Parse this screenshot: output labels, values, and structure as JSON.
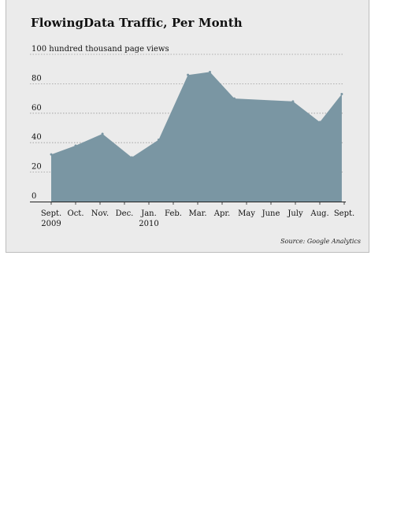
{
  "chart_data": {
    "type": "area",
    "title": "FlowingData Traffic, Per Month",
    "ylabel": "100 hundred thousand page views",
    "source": "Source: Google Analytics",
    "ylim": [
      0,
      100
    ],
    "yticks": [
      "0",
      "20",
      "40",
      "60",
      "80",
      "100"
    ],
    "grid": true,
    "x_labels": [
      {
        "month": "Sept.",
        "year": "2009"
      },
      {
        "month": "Oct.",
        "year": ""
      },
      {
        "month": "Nov.",
        "year": ""
      },
      {
        "month": "Dec.",
        "year": ""
      },
      {
        "month": "Jan.",
        "year": "2010"
      },
      {
        "month": "Feb.",
        "year": ""
      },
      {
        "month": "Mar.",
        "year": ""
      },
      {
        "month": "Apr.",
        "year": ""
      },
      {
        "month": "May",
        "year": ""
      },
      {
        "month": "June",
        "year": ""
      },
      {
        "month": "July",
        "year": ""
      },
      {
        "month": "Aug.",
        "year": ""
      },
      {
        "month": "Sept.",
        "year": ""
      }
    ],
    "series": [
      {
        "points": [
          {
            "x": 0.0,
            "y": 32
          },
          {
            "x": 1.0,
            "y": 38
          },
          {
            "x": 2.1,
            "y": 46
          },
          {
            "x": 3.3,
            "y": 30
          },
          {
            "x": 4.4,
            "y": 42
          },
          {
            "x": 5.6,
            "y": 86
          },
          {
            "x": 6.5,
            "y": 88
          },
          {
            "x": 7.5,
            "y": 70
          },
          {
            "x": 9.9,
            "y": 68
          },
          {
            "x": 11.0,
            "y": 54
          },
          {
            "x": 11.9,
            "y": 73
          }
        ]
      }
    ],
    "colors": {
      "area": "#7a96a3",
      "grid": "#9a9a9a",
      "axis": "#222222",
      "background": "#ebebeb"
    }
  }
}
